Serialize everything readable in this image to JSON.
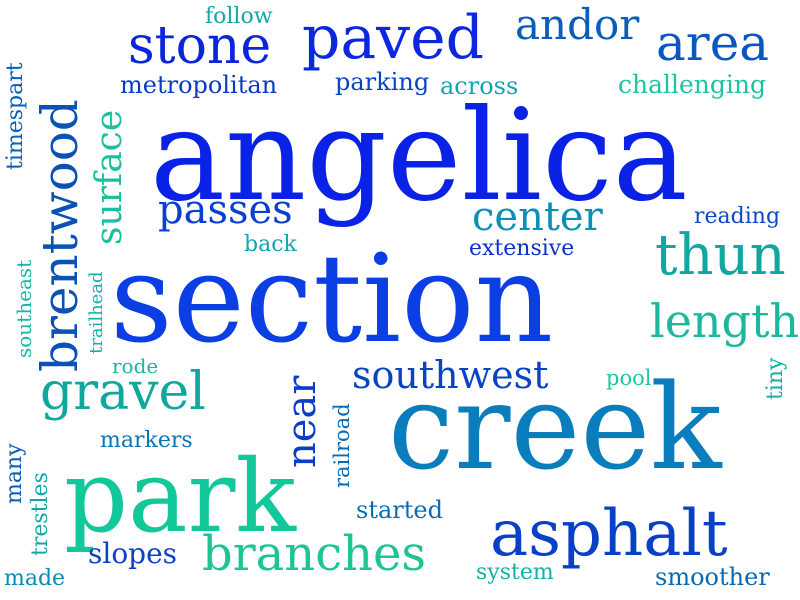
{
  "words": [
    {
      "text": "angelica",
      "color": "#0a22e6"
    },
    {
      "text": "section",
      "color": "#0b3ee3"
    },
    {
      "text": "creek",
      "color": "#0a7dbd"
    },
    {
      "text": "park",
      "color": "#12c79a"
    },
    {
      "text": "asphalt",
      "color": "#0a40c6"
    },
    {
      "text": "branches",
      "color": "#1ec494"
    },
    {
      "text": "paved",
      "color": "#0b27e0"
    },
    {
      "text": "stone",
      "color": "#0a26dc"
    },
    {
      "text": "area",
      "color": "#0a57bd"
    },
    {
      "text": "andor",
      "color": "#0a5db8"
    },
    {
      "text": "brentwood",
      "color": "#0a52b6"
    },
    {
      "text": "surface",
      "color": "#1cbfa0"
    },
    {
      "text": "gravel",
      "color": "#10a79e"
    },
    {
      "text": "thun",
      "color": "#11a6a0"
    },
    {
      "text": "length",
      "color": "#1db7a0"
    },
    {
      "text": "southwest",
      "color": "#0a44c2"
    },
    {
      "text": "passes",
      "color": "#0a3fd0"
    },
    {
      "text": "center",
      "color": "#0b8fb5"
    },
    {
      "text": "near",
      "color": "#0a3ec8"
    },
    {
      "text": "slopes",
      "color": "#0a40ce"
    },
    {
      "text": "metropolitan",
      "color": "#0a39c6"
    },
    {
      "text": "parking",
      "color": "#0a44c6"
    },
    {
      "text": "across",
      "color": "#12a3b4"
    },
    {
      "text": "challenging",
      "color": "#1dc3a2"
    },
    {
      "text": "follow",
      "color": "#14a6a8"
    },
    {
      "text": "timespart",
      "color": "#0a5fb6"
    },
    {
      "text": "reading",
      "color": "#0a4ac2"
    },
    {
      "text": "extensive",
      "color": "#0a30cc"
    },
    {
      "text": "back",
      "color": "#13a5b0"
    },
    {
      "text": "southeast",
      "color": "#16b8a8"
    },
    {
      "text": "trailhead",
      "color": "#14b0a6"
    },
    {
      "text": "rode",
      "color": "#1bb4a0"
    },
    {
      "text": "pool",
      "color": "#1cc8a0"
    },
    {
      "text": "tiny",
      "color": "#15b0a6"
    },
    {
      "text": "railroad",
      "color": "#0a6cb8"
    },
    {
      "text": "markers",
      "color": "#0a75b4"
    },
    {
      "text": "many",
      "color": "#0a5cb4"
    },
    {
      "text": "trestles",
      "color": "#12a8a8"
    },
    {
      "text": "started",
      "color": "#0a6cb4"
    },
    {
      "text": "made",
      "color": "#0a8ab2"
    },
    {
      "text": "system",
      "color": "#12b0a8"
    },
    {
      "text": "smoother",
      "color": "#0a68b4"
    }
  ]
}
